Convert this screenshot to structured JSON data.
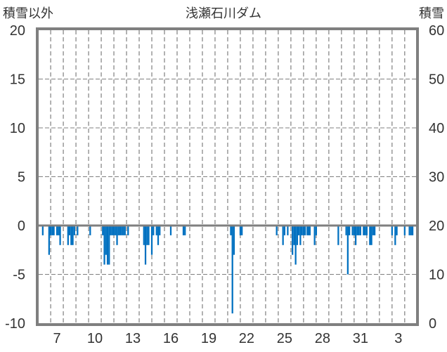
{
  "chart_data": {
    "type": "bar",
    "title": "浅瀬石川ダム",
    "ylabel_left": "積雪以外",
    "ylabel_right": "積雪",
    "ylim_left": [
      -10,
      20
    ],
    "ylim_right": [
      0,
      60
    ],
    "yticks_left": [
      "20",
      "15",
      "10",
      "5",
      "0",
      "-5",
      "-10"
    ],
    "yticks_right": [
      "60",
      "50",
      "40",
      "30",
      "20",
      "10",
      "0"
    ],
    "xlim_days": [
      6.05,
      35.9
    ],
    "xticks": [
      {
        "day": 7.5,
        "label": "7"
      },
      {
        "day": 10.5,
        "label": "10"
      },
      {
        "day": 13.5,
        "label": "13"
      },
      {
        "day": 16.5,
        "label": "16"
      },
      {
        "day": 19.5,
        "label": "19"
      },
      {
        "day": 22.5,
        "label": "22"
      },
      {
        "day": 25.5,
        "label": "25"
      },
      {
        "day": 28.5,
        "label": "28"
      },
      {
        "day": 31.5,
        "label": "31"
      },
      {
        "day": 34.5,
        "label": "3"
      }
    ],
    "grid": "dashed",
    "colors": {
      "bar": "#0070c0",
      "axis": "#7f7f7f",
      "grid": "#7f7f7f"
    },
    "series": [
      {
        "name": "積雪以外",
        "bar_width_days": 0.125,
        "points": [
          [
            6.375,
            -1
          ],
          [
            6.875,
            -3
          ],
          [
            7.0,
            -1
          ],
          [
            7.125,
            -1
          ],
          [
            7.25,
            -1
          ],
          [
            7.5,
            -1
          ],
          [
            7.625,
            -1
          ],
          [
            7.75,
            -2
          ],
          [
            8.375,
            -2
          ],
          [
            8.5,
            -1
          ],
          [
            8.625,
            -2
          ],
          [
            8.75,
            -2
          ],
          [
            8.875,
            -1
          ],
          [
            9.125,
            -1
          ],
          [
            10.125,
            -1
          ],
          [
            11.125,
            -1
          ],
          [
            11.25,
            -4
          ],
          [
            11.375,
            -3
          ],
          [
            11.5,
            -4
          ],
          [
            11.625,
            -4
          ],
          [
            11.75,
            -1
          ],
          [
            11.875,
            -1
          ],
          [
            12.0,
            -1
          ],
          [
            12.125,
            -1
          ],
          [
            12.25,
            -2
          ],
          [
            12.375,
            -1
          ],
          [
            12.5,
            -1
          ],
          [
            12.625,
            -1
          ],
          [
            12.75,
            -1
          ],
          [
            12.875,
            -1
          ],
          [
            13.125,
            -1
          ],
          [
            14.375,
            -2
          ],
          [
            14.5,
            -4
          ],
          [
            14.625,
            -2
          ],
          [
            14.75,
            -2
          ],
          [
            15.0,
            -3
          ],
          [
            15.125,
            -1
          ],
          [
            15.375,
            -1
          ],
          [
            15.5,
            -2
          ],
          [
            15.625,
            -1
          ],
          [
            16.5,
            -1
          ],
          [
            17.5,
            -1
          ],
          [
            17.625,
            -1
          ],
          [
            21.25,
            -1
          ],
          [
            21.375,
            -9
          ],
          [
            21.5,
            -3
          ],
          [
            22.0,
            -1
          ],
          [
            22.125,
            -1
          ],
          [
            24.875,
            -1
          ],
          [
            25.375,
            -2
          ],
          [
            25.5,
            -1
          ],
          [
            25.75,
            -1
          ],
          [
            26.125,
            -3
          ],
          [
            26.25,
            -2
          ],
          [
            26.375,
            -4
          ],
          [
            26.5,
            -2
          ],
          [
            26.625,
            -1
          ],
          [
            26.75,
            -2
          ],
          [
            26.875,
            -1
          ],
          [
            27.0,
            -1
          ],
          [
            27.125,
            -1
          ],
          [
            27.3,
            -1
          ],
          [
            27.4,
            -1
          ],
          [
            27.5,
            -1
          ],
          [
            27.875,
            -2
          ],
          [
            28.0,
            -1
          ],
          [
            29.75,
            -2
          ],
          [
            30.375,
            -1
          ],
          [
            30.5,
            -5
          ],
          [
            30.625,
            -1
          ],
          [
            30.875,
            -1
          ],
          [
            31.0,
            -1
          ],
          [
            31.125,
            -2
          ],
          [
            31.25,
            -1
          ],
          [
            31.375,
            -1
          ],
          [
            31.5,
            -1
          ],
          [
            31.75,
            -1
          ],
          [
            31.875,
            -1
          ],
          [
            32.0,
            -1
          ],
          [
            32.25,
            -2
          ],
          [
            32.375,
            -2
          ],
          [
            32.5,
            -1
          ],
          [
            32.625,
            -1
          ],
          [
            34.0,
            -1
          ],
          [
            34.25,
            -2
          ],
          [
            34.375,
            -1
          ],
          [
            35.0,
            -1
          ],
          [
            35.375,
            -1
          ],
          [
            35.5,
            -1
          ],
          [
            35.625,
            -1
          ]
        ]
      }
    ]
  }
}
